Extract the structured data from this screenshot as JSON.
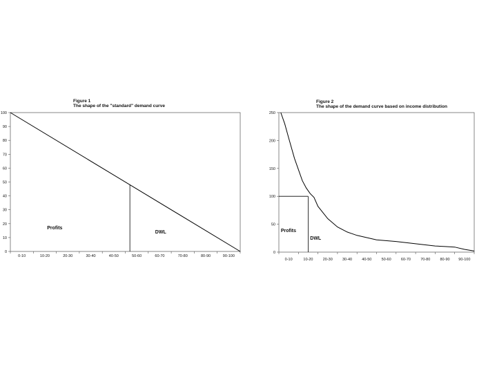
{
  "chart_data": [
    {
      "type": "line",
      "title": "Figure 1",
      "subtitle": "The shape of the \"standard\" demand curve",
      "xlabel": "",
      "ylabel": "",
      "categories": [
        "0-10",
        "10-20",
        "20-30",
        "30-40",
        "40-50",
        "50-60",
        "60-70",
        "70-80",
        "80-90",
        "90-100"
      ],
      "y_ticks": [
        0,
        10,
        20,
        30,
        40,
        50,
        60,
        70,
        80,
        90,
        100
      ],
      "ylim": [
        0,
        100
      ],
      "series": [
        {
          "x": [
            0,
            10
          ],
          "y": [
            100,
            0
          ]
        }
      ],
      "cutoff": {
        "x": 5.2,
        "y": 48
      },
      "annotations": {
        "profits": "Profits",
        "dwl": "DWL"
      },
      "grid": false
    },
    {
      "type": "line",
      "title": "Figure 2",
      "subtitle": "The shape of the demand curve based on income distribution",
      "xlabel": "",
      "ylabel": "",
      "categories": [
        "0-10",
        "10-20",
        "20-30",
        "30-40",
        "40-50",
        "50-60",
        "60-70",
        "70-80",
        "80-90",
        "90-100"
      ],
      "y_ticks": [
        0,
        50,
        100,
        150,
        200,
        250
      ],
      "ylim": [
        0,
        250
      ],
      "series": [
        {
          "x": [
            0.1,
            0.3,
            0.5,
            0.8,
            1.0,
            1.2,
            1.4,
            1.6,
            1.8,
            2.0,
            2.5,
            3.0,
            3.5,
            4.0,
            5.0,
            6.0,
            7.0,
            8.0,
            8.5,
            9.0,
            9.5,
            10.0
          ],
          "y": [
            250,
            230,
            205,
            168,
            148,
            128,
            115,
            105,
            98,
            82,
            60,
            45,
            36,
            30,
            22,
            19,
            15,
            11,
            10,
            9,
            5,
            2
          ]
        }
      ],
      "cutoff": {
        "x": 1.5,
        "y": 100
      },
      "annotations": {
        "profits": "Profits",
        "dwl": "DWL"
      },
      "grid": false
    }
  ]
}
